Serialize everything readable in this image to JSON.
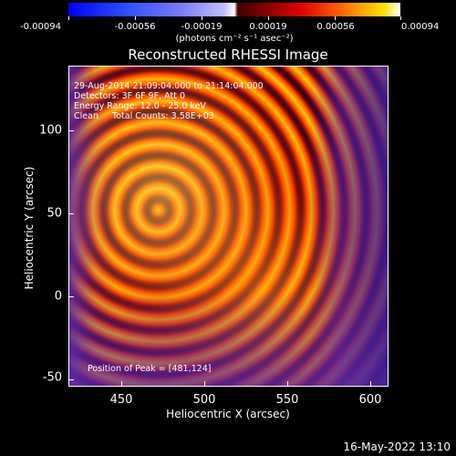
{
  "colorbar": {
    "tick_labels": [
      "-0.00094",
      "-0.00056",
      "-0.00019",
      "0.00019",
      "0.00056",
      "0.00094"
    ],
    "units": "(photons cm⁻² s⁻¹ asec⁻²)"
  },
  "title": "Reconstructed RHESSI Image",
  "info": {
    "time_range": "29-Aug-2014 21:09:04.000 to 21:14:04.000",
    "detectors": "Detectors: 3F 6F 9F, Att 0",
    "energy": "Energy Range: 12.0 - 25.0 keV",
    "method": "Clean     Total Counts: 3.58E+03"
  },
  "peak": "Position of Peak = [481,124]",
  "axes": {
    "x_ticks": [
      "450",
      "500",
      "550",
      "600"
    ],
    "y_ticks": [
      "100",
      "50",
      "0",
      "-50"
    ],
    "xlabel": "Heliocentric X (arcsec)",
    "ylabel": "Heliocentric Y (arcsec)"
  },
  "timestamp": "16-May-2022 13:10"
}
